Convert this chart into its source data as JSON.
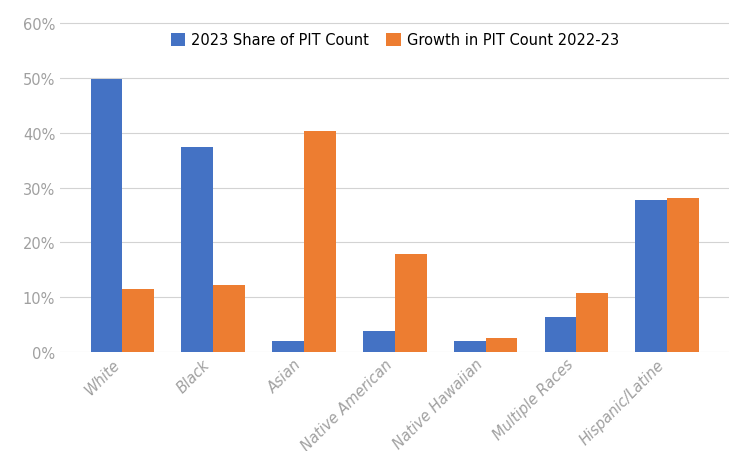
{
  "categories": [
    "White",
    "Black",
    "Asian",
    "Native American",
    "Native Hawaiian",
    "Multiple Races",
    "Hispanic/Latine"
  ],
  "share_2023": [
    0.499,
    0.375,
    0.02,
    0.038,
    0.019,
    0.063,
    0.277
  ],
  "growth_2223": [
    0.115,
    0.121,
    0.403,
    0.178,
    0.025,
    0.108,
    0.28
  ],
  "bar_color_share": "#4472C4",
  "bar_color_growth": "#ED7D31",
  "legend_labels": [
    "2023 Share of PIT Count",
    "Growth in PIT Count 2022-23"
  ],
  "ylim": [
    0,
    0.62
  ],
  "yticks": [
    0,
    0.1,
    0.2,
    0.3,
    0.4,
    0.5,
    0.6
  ],
  "ytick_labels": [
    "0%",
    "10%",
    "20%",
    "30%",
    "40%",
    "50%",
    "60%"
  ],
  "background_color": "#ffffff",
  "grid_color": "#d3d3d3",
  "bar_width": 0.35,
  "figsize": [
    7.52,
    4.52
  ],
  "dpi": 100,
  "tick_label_color": "#a0a0a0",
  "label_fontsize": 10.5
}
